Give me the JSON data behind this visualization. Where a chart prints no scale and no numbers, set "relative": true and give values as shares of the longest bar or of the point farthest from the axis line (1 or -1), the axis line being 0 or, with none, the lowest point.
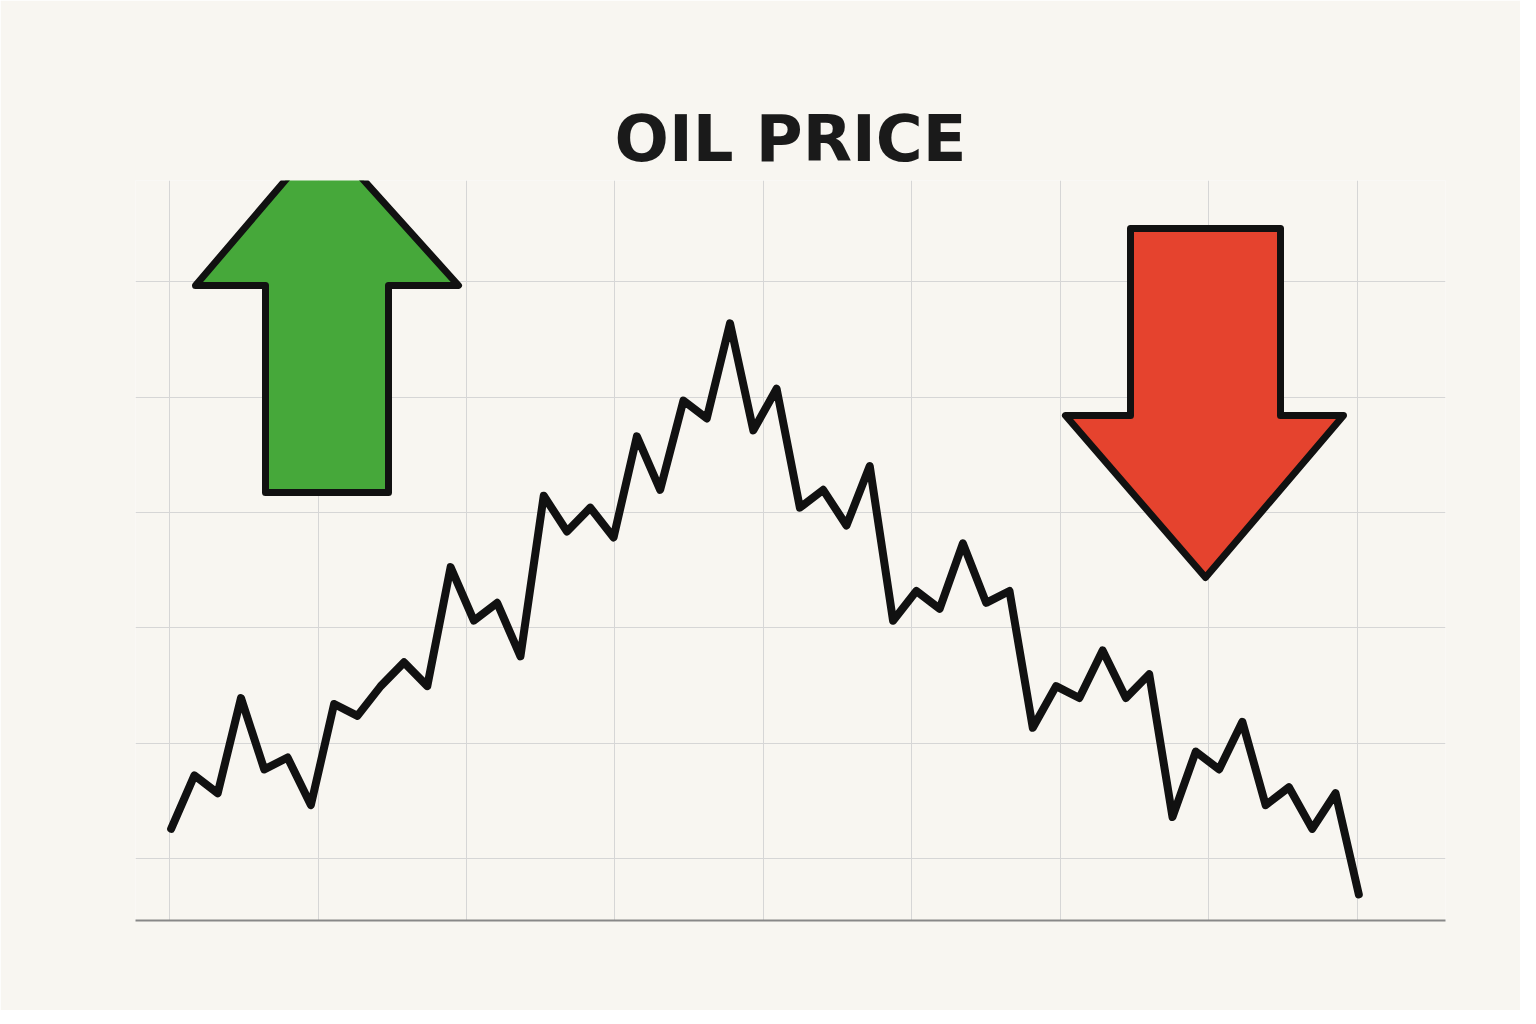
{
  "chart_data": {
    "type": "line",
    "title": "OIL PRICE",
    "relative": true,
    "grid": true,
    "line_style": "solid",
    "categories": [
      null,
      null,
      null,
      null,
      null,
      null,
      null,
      null,
      null,
      null,
      null,
      null,
      null,
      null,
      null,
      null,
      null,
      null,
      null,
      null,
      null,
      null,
      null,
      null,
      null,
      null,
      null,
      null,
      null,
      null,
      null,
      null,
      null,
      null,
      null,
      null,
      null,
      null,
      null,
      null,
      null,
      null,
      null,
      null,
      null,
      null,
      null,
      null,
      null,
      null,
      null,
      null
    ],
    "series": [
      {
        "color": "#111111",
        "values": [
          0.15,
          0.24,
          0.21,
          0.37,
          0.25,
          0.27,
          0.19,
          0.36,
          0.34,
          0.39,
          0.43,
          0.39,
          0.59,
          0.5,
          0.53,
          0.44,
          0.71,
          0.65,
          0.69,
          0.64,
          0.81,
          0.72,
          0.87,
          0.84,
          1,
          0.82,
          0.89,
          0.69,
          0.72,
          0.66,
          0.76,
          0.5,
          0.55,
          0.52,
          0.63,
          0.53,
          0.55,
          0.32,
          0.39,
          0.37,
          0.45,
          0.37,
          0.41,
          0.17,
          0.28,
          0.25,
          0.33,
          0.19,
          0.22,
          0.15,
          0.21,
          0.04
        ]
      }
    ]
  }
}
